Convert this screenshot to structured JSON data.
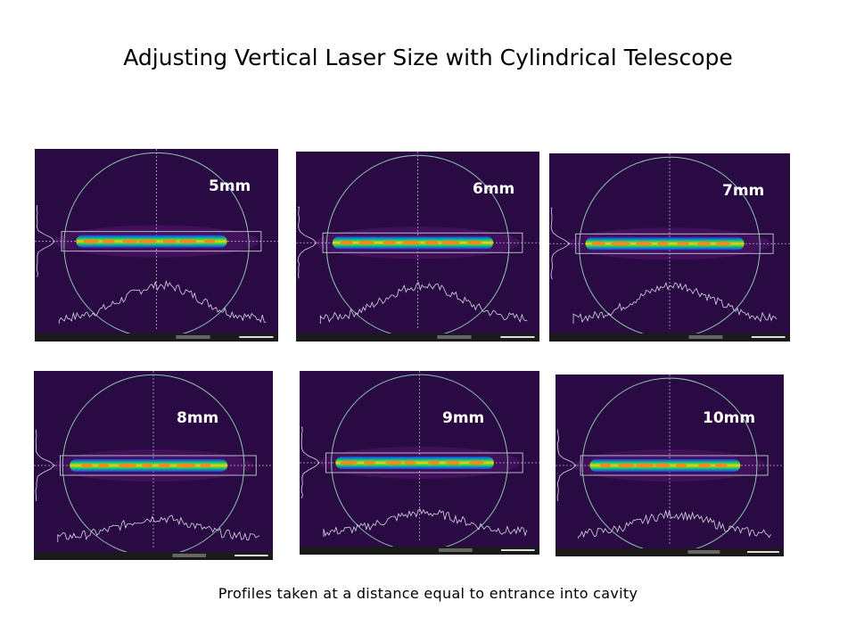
{
  "slide": {
    "title": "Adjusting Vertical Laser Size with Cylindrical Telescope",
    "caption": "Profiles taken at a distance equal to entrance into cavity"
  },
  "panels": [
    {
      "label": "5mm"
    },
    {
      "label": "6mm"
    },
    {
      "label": "7mm"
    },
    {
      "label": "8mm"
    },
    {
      "label": "9mm"
    },
    {
      "label": "10mm"
    }
  ],
  "colors": {
    "background": "#2a0a42",
    "circle": "#8fc2b0",
    "profile": "#d8d8e8",
    "beam_core": "#ffd000",
    "beam_mid": "#20d060",
    "beam_edge": "#1040ff"
  }
}
